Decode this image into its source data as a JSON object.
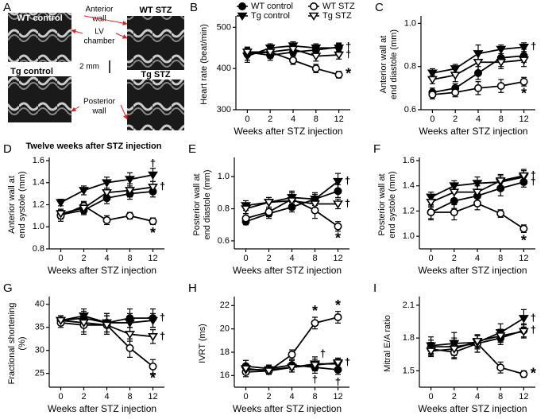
{
  "echo_panel": {
    "label": "A",
    "images": [
      "WT control",
      "WT STZ",
      "Tg control",
      "Tg STZ"
    ],
    "anterior_wall": [
      "Anterior",
      "wall"
    ],
    "lv_chamber": [
      "LV",
      "chamber"
    ],
    "posterior_wall": [
      "Posterior",
      "wall"
    ],
    "scale": "2 mm",
    "caption": "Twelve weeks after STZ injection"
  },
  "chart_data": [
    {
      "type": "line",
      "label": "B",
      "ylabel": [
        "Heart rate (beat/min)"
      ],
      "xlabel": "Weeks after STZ injection",
      "legend": true,
      "categories": [
        "0",
        "2",
        "4",
        "8",
        "12"
      ],
      "ylim": [
        300,
        520
      ],
      "yticks": [
        300,
        400,
        500
      ],
      "series": [
        {
          "name": "WT control",
          "marker": "circle",
          "filled": true,
          "color": "#000000",
          "values": [
            440,
            432,
            440,
            445,
            452
          ],
          "errors": [
            12,
            12,
            15,
            12,
            10
          ]
        },
        {
          "name": "WT STZ",
          "marker": "circle",
          "filled": false,
          "color": "#000000",
          "values": [
            435,
            440,
            420,
            400,
            385
          ],
          "errors": [
            15,
            12,
            10,
            10,
            8
          ]
        },
        {
          "name": "Tg control",
          "marker": "triangle-down",
          "filled": true,
          "color": "#000000",
          "values": [
            430,
            450,
            455,
            450,
            450
          ],
          "errors": [
            15,
            10,
            10,
            10,
            10
          ]
        },
        {
          "name": "Tg STZ",
          "marker": "triangle-down",
          "filled": false,
          "color": "#000000",
          "values": [
            440,
            440,
            447,
            430,
            433
          ],
          "errors": [
            10,
            15,
            15,
            12,
            10
          ]
        }
      ],
      "annotations": [
        {
          "text": "†",
          "series": 0,
          "index": 4,
          "position": "right"
        },
        {
          "text": "†",
          "series": 3,
          "index": 4,
          "position": "right"
        },
        {
          "text": "*",
          "series": 1,
          "index": 4,
          "position": "right"
        }
      ]
    },
    {
      "type": "line",
      "label": "C",
      "ylabel": [
        "Anterior wall at",
        "end diastole (mm)"
      ],
      "xlabel": "Weeks after STZ injection",
      "categories": [
        "0",
        "2",
        "4",
        "8",
        "12"
      ],
      "ylim": [
        0.6,
        1.02
      ],
      "yticks": [
        0.6,
        0.8,
        {
          "value": 1,
          "label": "1.0"
        }
      ],
      "series": [
        {
          "marker": "circle",
          "filled": true,
          "color": "#000000",
          "values": [
            0.68,
            0.7,
            0.77,
            0.84,
            0.85
          ],
          "errors": [
            0.02,
            0.02,
            0.03,
            0.04,
            0.03
          ]
        },
        {
          "marker": "circle",
          "filled": false,
          "color": "#000000",
          "values": [
            0.67,
            0.68,
            0.7,
            0.71,
            0.73
          ],
          "errors": [
            0.02,
            0.02,
            0.03,
            0.03,
            0.02
          ]
        },
        {
          "marker": "triangle-down",
          "filled": true,
          "color": "#000000",
          "values": [
            0.77,
            0.79,
            0.86,
            0.88,
            0.89
          ],
          "errors": [
            0.02,
            0.02,
            0.04,
            0.02,
            0.02
          ]
        },
        {
          "marker": "triangle-down",
          "filled": false,
          "color": "#000000",
          "values": [
            0.74,
            0.76,
            0.82,
            0.82,
            0.83
          ],
          "errors": [
            0.02,
            0.03,
            0.04,
            0.03,
            0.03
          ]
        }
      ],
      "annotations": [
        {
          "text": "†",
          "series": 2,
          "index": 4,
          "position": "right"
        },
        {
          "text": "*",
          "series": 1,
          "index": 4,
          "position": "below"
        }
      ]
    },
    {
      "type": "line",
      "label": "D",
      "ylabel": [
        "Anterior wall at",
        "end systole (mm)"
      ],
      "xlabel": "Weeks after STZ injection",
      "categories": [
        "0",
        "2",
        "4",
        "8",
        "12"
      ],
      "ylim": [
        0.8,
        1.6
      ],
      "yticks": [
        0.8,
        {
          "value": 1,
          "label": "1.0"
        },
        1.2,
        1.4,
        1.6
      ],
      "series": [
        {
          "marker": "circle",
          "filled": true,
          "color": "#000000",
          "values": [
            1.11,
            1.15,
            1.26,
            1.3,
            1.32
          ],
          "errors": [
            0.04,
            0.04,
            0.05,
            0.05,
            0.05
          ]
        },
        {
          "marker": "circle",
          "filled": false,
          "color": "#000000",
          "values": [
            1.1,
            1.19,
            1.06,
            1.1,
            1.05
          ],
          "errors": [
            0.05,
            0.04,
            0.04,
            0.03,
            0.03
          ]
        },
        {
          "marker": "triangle-down",
          "filled": true,
          "color": "#000000",
          "values": [
            1.22,
            1.33,
            1.4,
            1.43,
            1.47
          ],
          "errors": [
            0.03,
            0.04,
            0.05,
            0.06,
            0.06
          ]
        },
        {
          "marker": "triangle-down",
          "filled": false,
          "color": "#000000",
          "values": [
            1.12,
            1.17,
            1.31,
            1.33,
            1.36
          ],
          "errors": [
            0.04,
            0.05,
            0.04,
            0.06,
            0.05
          ]
        }
      ],
      "annotations": [
        {
          "text": "†",
          "series": 2,
          "index": 4,
          "position": "above"
        },
        {
          "text": "†",
          "series": 3,
          "index": 4,
          "position": "right"
        },
        {
          "text": "*",
          "series": 1,
          "index": 4,
          "position": "below"
        }
      ]
    },
    {
      "type": "line",
      "label": "E",
      "ylabel": [
        "Posterior wall at",
        "end diastole (mm)"
      ],
      "xlabel": "Weeks after STZ injection",
      "categories": [
        "0",
        "2",
        "4",
        "8",
        "12"
      ],
      "ylim": [
        0.55,
        1.1
      ],
      "yticks": [
        0.6,
        0.8,
        {
          "value": 1,
          "label": "1.0"
        }
      ],
      "series": [
        {
          "marker": "circle",
          "filled": true,
          "color": "#000000",
          "values": [
            0.72,
            0.77,
            0.81,
            0.86,
            0.91
          ],
          "errors": [
            0.02,
            0.03,
            0.03,
            0.04,
            0.04
          ]
        },
        {
          "marker": "circle",
          "filled": false,
          "color": "#000000",
          "values": [
            0.74,
            0.78,
            0.86,
            0.79,
            0.69
          ],
          "errors": [
            0.03,
            0.03,
            0.04,
            0.05,
            0.03
          ]
        },
        {
          "marker": "triangle-down",
          "filled": true,
          "color": "#000000",
          "values": [
            0.82,
            0.84,
            0.87,
            0.86,
            0.97
          ],
          "errors": [
            0.03,
            0.03,
            0.04,
            0.03,
            0.05
          ]
        },
        {
          "marker": "triangle-down",
          "filled": false,
          "color": "#000000",
          "values": [
            0.8,
            0.84,
            0.85,
            0.83,
            0.83
          ],
          "errors": [
            0.03,
            0.03,
            0.04,
            0.04,
            0.03
          ]
        }
      ],
      "annotations": [
        {
          "text": "†",
          "series": 2,
          "index": 4,
          "position": "right"
        },
        {
          "text": "†",
          "series": 3,
          "index": 4,
          "position": "right"
        },
        {
          "text": "*",
          "series": 1,
          "index": 4,
          "position": "below"
        }
      ]
    },
    {
      "type": "line",
      "label": "F",
      "ylabel": [
        "Posterior wall at",
        "end systole (mm)"
      ],
      "xlabel": "Weeks after STZ injection",
      "categories": [
        "0",
        "2",
        "4",
        "8",
        "12"
      ],
      "ylim": [
        0.9,
        1.6
      ],
      "yticks": [
        {
          "value": 1,
          "label": "1.0"
        },
        1.2,
        1.4,
        1.6
      ],
      "series": [
        {
          "marker": "circle",
          "filled": true,
          "color": "#000000",
          "values": [
            1.19,
            1.28,
            1.32,
            1.38,
            1.43
          ],
          "errors": [
            0.06,
            0.06,
            0.05,
            0.06,
            0.04
          ]
        },
        {
          "marker": "circle",
          "filled": false,
          "color": "#000000",
          "values": [
            1.19,
            1.19,
            1.26,
            1.18,
            1.06
          ],
          "errors": [
            0.05,
            0.06,
            0.05,
            0.03,
            0.03
          ]
        },
        {
          "marker": "triangle-down",
          "filled": true,
          "color": "#000000",
          "values": [
            1.31,
            1.4,
            1.42,
            1.43,
            1.47
          ],
          "errors": [
            0.04,
            0.04,
            0.05,
            0.05,
            0.05
          ]
        },
        {
          "marker": "triangle-down",
          "filled": false,
          "color": "#000000",
          "values": [
            1.27,
            1.35,
            1.35,
            1.44,
            1.48
          ],
          "errors": [
            0.04,
            0.05,
            0.05,
            0.05,
            0.05
          ]
        }
      ],
      "annotations": [
        {
          "text": "†",
          "series": 3,
          "index": 4,
          "position": "right"
        },
        {
          "text": "†",
          "series": 0,
          "index": 4,
          "position": "right"
        },
        {
          "text": "*",
          "series": 1,
          "index": 4,
          "position": "below"
        }
      ]
    },
    {
      "type": "line",
      "label": "G",
      "ylabel": [
        "Fractional shortening",
        "(%)"
      ],
      "xlabel": "Weeks after STZ injection",
      "categories": [
        "0",
        "2",
        "4",
        "8",
        "12"
      ],
      "ylim": [
        22,
        41
      ],
      "yticks": [
        25,
        30,
        35,
        40
      ],
      "series": [
        {
          "marker": "circle",
          "filled": true,
          "color": "#000000",
          "values": [
            36.5,
            37,
            36,
            37,
            37
          ],
          "errors": [
            1,
            1.5,
            2,
            2,
            2
          ]
        },
        {
          "marker": "circle",
          "filled": false,
          "color": "#000000",
          "values": [
            36,
            35.5,
            35.5,
            30.5,
            26.5
          ],
          "errors": [
            1,
            2,
            2,
            2,
            1.5
          ]
        },
        {
          "marker": "triangle-down",
          "filled": true,
          "color": "#000000",
          "values": [
            36.5,
            37.5,
            36,
            36,
            36.5
          ],
          "errors": [
            1,
            1.5,
            2,
            2,
            1.5
          ]
        },
        {
          "marker": "triangle-down",
          "filled": false,
          "color": "#000000",
          "values": [
            36.5,
            36,
            35.5,
            33.5,
            33
          ],
          "errors": [
            1,
            2,
            2,
            1.5,
            1.5
          ]
        }
      ],
      "annotations": [
        {
          "text": "†",
          "series": 0,
          "index": 4,
          "position": "right"
        },
        {
          "text": "†",
          "series": 3,
          "index": 4,
          "position": "right"
        },
        {
          "text": "*",
          "series": 1,
          "index": 4,
          "position": "below"
        }
      ]
    },
    {
      "type": "line",
      "label": "H",
      "ylabel": [
        "IVRT (ms)"
      ],
      "xlabel": "Weeks after STZ injection",
      "categories": [
        "0",
        "2",
        "4",
        "8",
        "12"
      ],
      "ylim": [
        15,
        22.5
      ],
      "yticks": [
        16,
        18,
        20,
        22
      ],
      "series": [
        {
          "marker": "circle",
          "filled": true,
          "color": "#000000",
          "values": [
            16.8,
            16.6,
            16.9,
            16.7,
            16.5
          ],
          "errors": [
            0.5,
            0.3,
            0.4,
            0.5,
            0.4
          ]
        },
        {
          "marker": "circle",
          "filled": false,
          "color": "#000000",
          "values": [
            16.3,
            16.4,
            17.8,
            20.5,
            21
          ],
          "errors": [
            0.4,
            0.3,
            0.4,
            0.5,
            0.5
          ]
        },
        {
          "marker": "triangle-down",
          "filled": true,
          "color": "#000000",
          "values": [
            16.5,
            16.5,
            16.7,
            17,
            17
          ],
          "errors": [
            0.4,
            0.3,
            0.4,
            0.6,
            0.4
          ]
        },
        {
          "marker": "triangle-down",
          "filled": false,
          "color": "#000000",
          "values": [
            16.6,
            16.4,
            16.7,
            16.9,
            17.1
          ],
          "errors": [
            0.3,
            0.3,
            0.4,
            0.5,
            0.4
          ]
        }
      ],
      "annotations": [
        {
          "text": "*",
          "series": 1,
          "index": 3,
          "position": "above"
        },
        {
          "text": "*",
          "series": 1,
          "index": 4,
          "position": "above"
        },
        {
          "text": "†",
          "series": 2,
          "index": 3,
          "position": "above-right"
        },
        {
          "text": "†",
          "series": 0,
          "index": 3,
          "position": "below"
        },
        {
          "text": "†",
          "series": 3,
          "index": 4,
          "position": "right"
        },
        {
          "text": "†",
          "series": 0,
          "index": 4,
          "position": "below"
        }
      ]
    },
    {
      "type": "line",
      "label": "I",
      "ylabel": [
        "Mitral E/A ratio"
      ],
      "xlabel": "Weeks after STZ injection",
      "categories": [
        "0",
        "2",
        "4",
        "8",
        "12"
      ],
      "ylim": [
        1.35,
        2.15
      ],
      "yticks": [
        1.5,
        1.8,
        2.1
      ],
      "series": [
        {
          "marker": "circle",
          "filled": true,
          "color": "#000000",
          "values": [
            1.72,
            1.72,
            1.75,
            1.8,
            1.87
          ],
          "errors": [
            0.06,
            0.08,
            0.08,
            0.06,
            0.06
          ]
        },
        {
          "marker": "circle",
          "filled": false,
          "color": "#000000",
          "values": [
            1.7,
            1.67,
            1.75,
            1.53,
            1.47
          ],
          "errors": [
            0.06,
            0.06,
            0.08,
            0.05,
            0.03
          ]
        },
        {
          "marker": "triangle-down",
          "filled": true,
          "color": "#000000",
          "values": [
            1.73,
            1.75,
            1.76,
            1.85,
            1.98
          ],
          "errors": [
            0.08,
            0.1,
            0.06,
            0.08,
            0.08
          ]
        },
        {
          "marker": "triangle-down",
          "filled": false,
          "color": "#000000",
          "values": [
            1.68,
            1.7,
            1.77,
            1.82,
            1.86
          ],
          "errors": [
            0.05,
            0.08,
            0.06,
            0.06,
            0.06
          ]
        }
      ],
      "annotations": [
        {
          "text": "†",
          "series": 2,
          "index": 4,
          "position": "right"
        },
        {
          "text": "†",
          "series": 0,
          "index": 4,
          "position": "right"
        },
        {
          "text": "*",
          "series": 1,
          "index": 4,
          "position": "right"
        }
      ]
    }
  ]
}
